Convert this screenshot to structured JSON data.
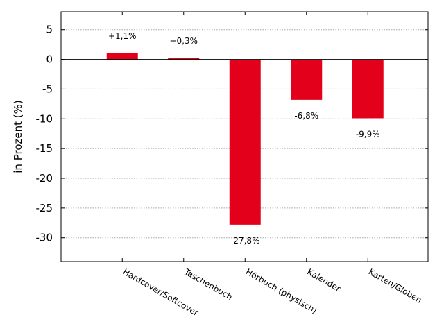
{
  "chart_data": {
    "type": "bar",
    "ylabel": "in Prozent (%)",
    "categories": [
      "Hardcover/Softcover",
      "Taschenbuch",
      "Hörbuch (physisch)",
      "Kalender",
      "Karten/Globen"
    ],
    "values": [
      1.1,
      0.3,
      -27.8,
      -6.8,
      -9.9
    ],
    "data_labels": [
      "+1,1%",
      "+0,3%",
      "-27,8%",
      "-6,8%",
      "-9,9%"
    ],
    "yticks": [
      5,
      0,
      -5,
      -10,
      -15,
      -20,
      -25,
      -30
    ],
    "ytick_labels": [
      "5",
      "0",
      "-5",
      "-10",
      "-15",
      "-20",
      "-25",
      "-30"
    ],
    "ylim": [
      -34,
      8
    ],
    "grid": true,
    "bar_color": "#e2001a",
    "zero_line": true
  }
}
